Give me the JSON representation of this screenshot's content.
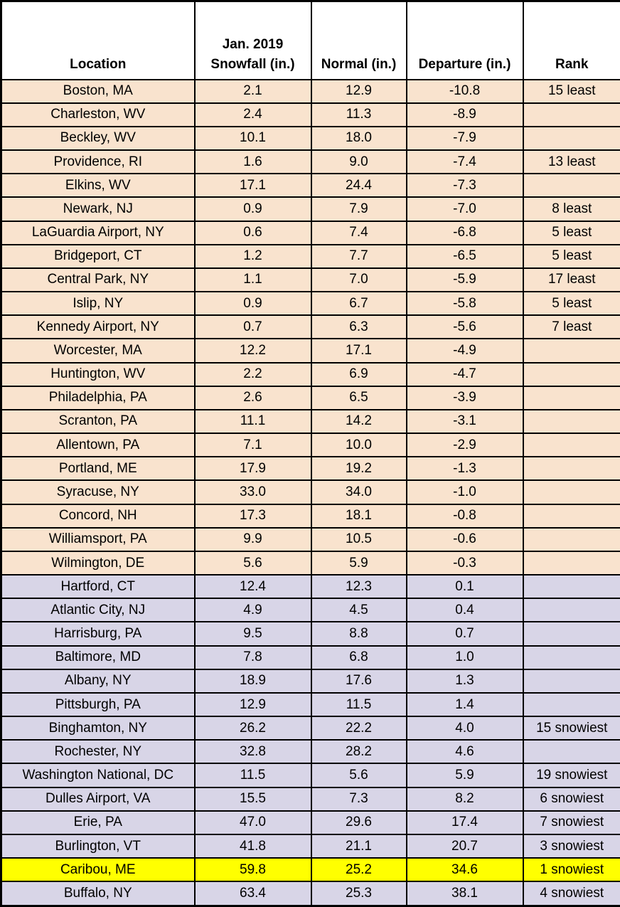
{
  "colors": {
    "below_normal_row": "#F9E3CE",
    "above_normal_row": "#D8D5E7",
    "record_highlight_row": "#FFFF00",
    "header_background": "#FFFFFF",
    "border": "#000000",
    "text": "#000000"
  },
  "chart_data": {
    "type": "table",
    "header": {
      "location": "Location",
      "snowfall": [
        "Jan. 2019",
        "Snowfall (in.)"
      ],
      "normal": "Normal (in.)",
      "departure": "Departure (in.)",
      "rank": "Rank"
    },
    "rows": [
      {
        "location": "Boston, MA",
        "snowfall": "2.1",
        "normal": "12.9",
        "departure": "-10.8",
        "rank": "15 least",
        "band": "below"
      },
      {
        "location": "Charleston, WV",
        "snowfall": "2.4",
        "normal": "11.3",
        "departure": "-8.9",
        "rank": "",
        "band": "below"
      },
      {
        "location": "Beckley, WV",
        "snowfall": "10.1",
        "normal": "18.0",
        "departure": "-7.9",
        "rank": "",
        "band": "below"
      },
      {
        "location": "Providence, RI",
        "snowfall": "1.6",
        "normal": "9.0",
        "departure": "-7.4",
        "rank": "13 least",
        "band": "below"
      },
      {
        "location": "Elkins, WV",
        "snowfall": "17.1",
        "normal": "24.4",
        "departure": "-7.3",
        "rank": "",
        "band": "below"
      },
      {
        "location": "Newark, NJ",
        "snowfall": "0.9",
        "normal": "7.9",
        "departure": "-7.0",
        "rank": "8 least",
        "band": "below"
      },
      {
        "location": "LaGuardia Airport, NY",
        "snowfall": "0.6",
        "normal": "7.4",
        "departure": "-6.8",
        "rank": "5 least",
        "band": "below"
      },
      {
        "location": "Bridgeport, CT",
        "snowfall": "1.2",
        "normal": "7.7",
        "departure": "-6.5",
        "rank": "5 least",
        "band": "below"
      },
      {
        "location": "Central Park, NY",
        "snowfall": "1.1",
        "normal": "7.0",
        "departure": "-5.9",
        "rank": "17 least",
        "band": "below"
      },
      {
        "location": "Islip, NY",
        "snowfall": "0.9",
        "normal": "6.7",
        "departure": "-5.8",
        "rank": "5 least",
        "band": "below"
      },
      {
        "location": "Kennedy Airport, NY",
        "snowfall": "0.7",
        "normal": "6.3",
        "departure": "-5.6",
        "rank": "7 least",
        "band": "below"
      },
      {
        "location": "Worcester, MA",
        "snowfall": "12.2",
        "normal": "17.1",
        "departure": "-4.9",
        "rank": "",
        "band": "below"
      },
      {
        "location": "Huntington, WV",
        "snowfall": "2.2",
        "normal": "6.9",
        "departure": "-4.7",
        "rank": "",
        "band": "below"
      },
      {
        "location": "Philadelphia, PA",
        "snowfall": "2.6",
        "normal": "6.5",
        "departure": "-3.9",
        "rank": "",
        "band": "below"
      },
      {
        "location": "Scranton, PA",
        "snowfall": "11.1",
        "normal": "14.2",
        "departure": "-3.1",
        "rank": "",
        "band": "below"
      },
      {
        "location": "Allentown, PA",
        "snowfall": "7.1",
        "normal": "10.0",
        "departure": "-2.9",
        "rank": "",
        "band": "below"
      },
      {
        "location": "Portland, ME",
        "snowfall": "17.9",
        "normal": "19.2",
        "departure": "-1.3",
        "rank": "",
        "band": "below"
      },
      {
        "location": "Syracuse, NY",
        "snowfall": "33.0",
        "normal": "34.0",
        "departure": "-1.0",
        "rank": "",
        "band": "below"
      },
      {
        "location": "Concord, NH",
        "snowfall": "17.3",
        "normal": "18.1",
        "departure": "-0.8",
        "rank": "",
        "band": "below"
      },
      {
        "location": "Williamsport, PA",
        "snowfall": "9.9",
        "normal": "10.5",
        "departure": "-0.6",
        "rank": "",
        "band": "below"
      },
      {
        "location": "Wilmington, DE",
        "snowfall": "5.6",
        "normal": "5.9",
        "departure": "-0.3",
        "rank": "",
        "band": "below"
      },
      {
        "location": "Hartford, CT",
        "snowfall": "12.4",
        "normal": "12.3",
        "departure": "0.1",
        "rank": "",
        "band": "above"
      },
      {
        "location": "Atlantic City, NJ",
        "snowfall": "4.9",
        "normal": "4.5",
        "departure": "0.4",
        "rank": "",
        "band": "above"
      },
      {
        "location": "Harrisburg, PA",
        "snowfall": "9.5",
        "normal": "8.8",
        "departure": "0.7",
        "rank": "",
        "band": "above"
      },
      {
        "location": "Baltimore, MD",
        "snowfall": "7.8",
        "normal": "6.8",
        "departure": "1.0",
        "rank": "",
        "band": "above"
      },
      {
        "location": "Albany, NY",
        "snowfall": "18.9",
        "normal": "17.6",
        "departure": "1.3",
        "rank": "",
        "band": "above"
      },
      {
        "location": "Pittsburgh, PA",
        "snowfall": "12.9",
        "normal": "11.5",
        "departure": "1.4",
        "rank": "",
        "band": "above"
      },
      {
        "location": "Binghamton, NY",
        "snowfall": "26.2",
        "normal": "22.2",
        "departure": "4.0",
        "rank": "15 snowiest",
        "band": "above"
      },
      {
        "location": "Rochester, NY",
        "snowfall": "32.8",
        "normal": "28.2",
        "departure": "4.6",
        "rank": "",
        "band": "above"
      },
      {
        "location": "Washington National, DC",
        "snowfall": "11.5",
        "normal": "5.6",
        "departure": "5.9",
        "rank": "19 snowiest",
        "band": "above"
      },
      {
        "location": "Dulles Airport, VA",
        "snowfall": "15.5",
        "normal": "7.3",
        "departure": "8.2",
        "rank": "6 snowiest",
        "band": "above"
      },
      {
        "location": "Erie, PA",
        "snowfall": "47.0",
        "normal": "29.6",
        "departure": "17.4",
        "rank": "7 snowiest",
        "band": "above"
      },
      {
        "location": "Burlington, VT",
        "snowfall": "41.8",
        "normal": "21.1",
        "departure": "20.7",
        "rank": "3 snowiest",
        "band": "above"
      },
      {
        "location": "Caribou, ME",
        "snowfall": "59.8",
        "normal": "25.2",
        "departure": "34.6",
        "rank": "1 snowiest",
        "band": "record"
      },
      {
        "location": "Buffalo, NY",
        "snowfall": "63.4",
        "normal": "25.3",
        "departure": "38.1",
        "rank": "4 snowiest",
        "band": "above"
      }
    ]
  }
}
